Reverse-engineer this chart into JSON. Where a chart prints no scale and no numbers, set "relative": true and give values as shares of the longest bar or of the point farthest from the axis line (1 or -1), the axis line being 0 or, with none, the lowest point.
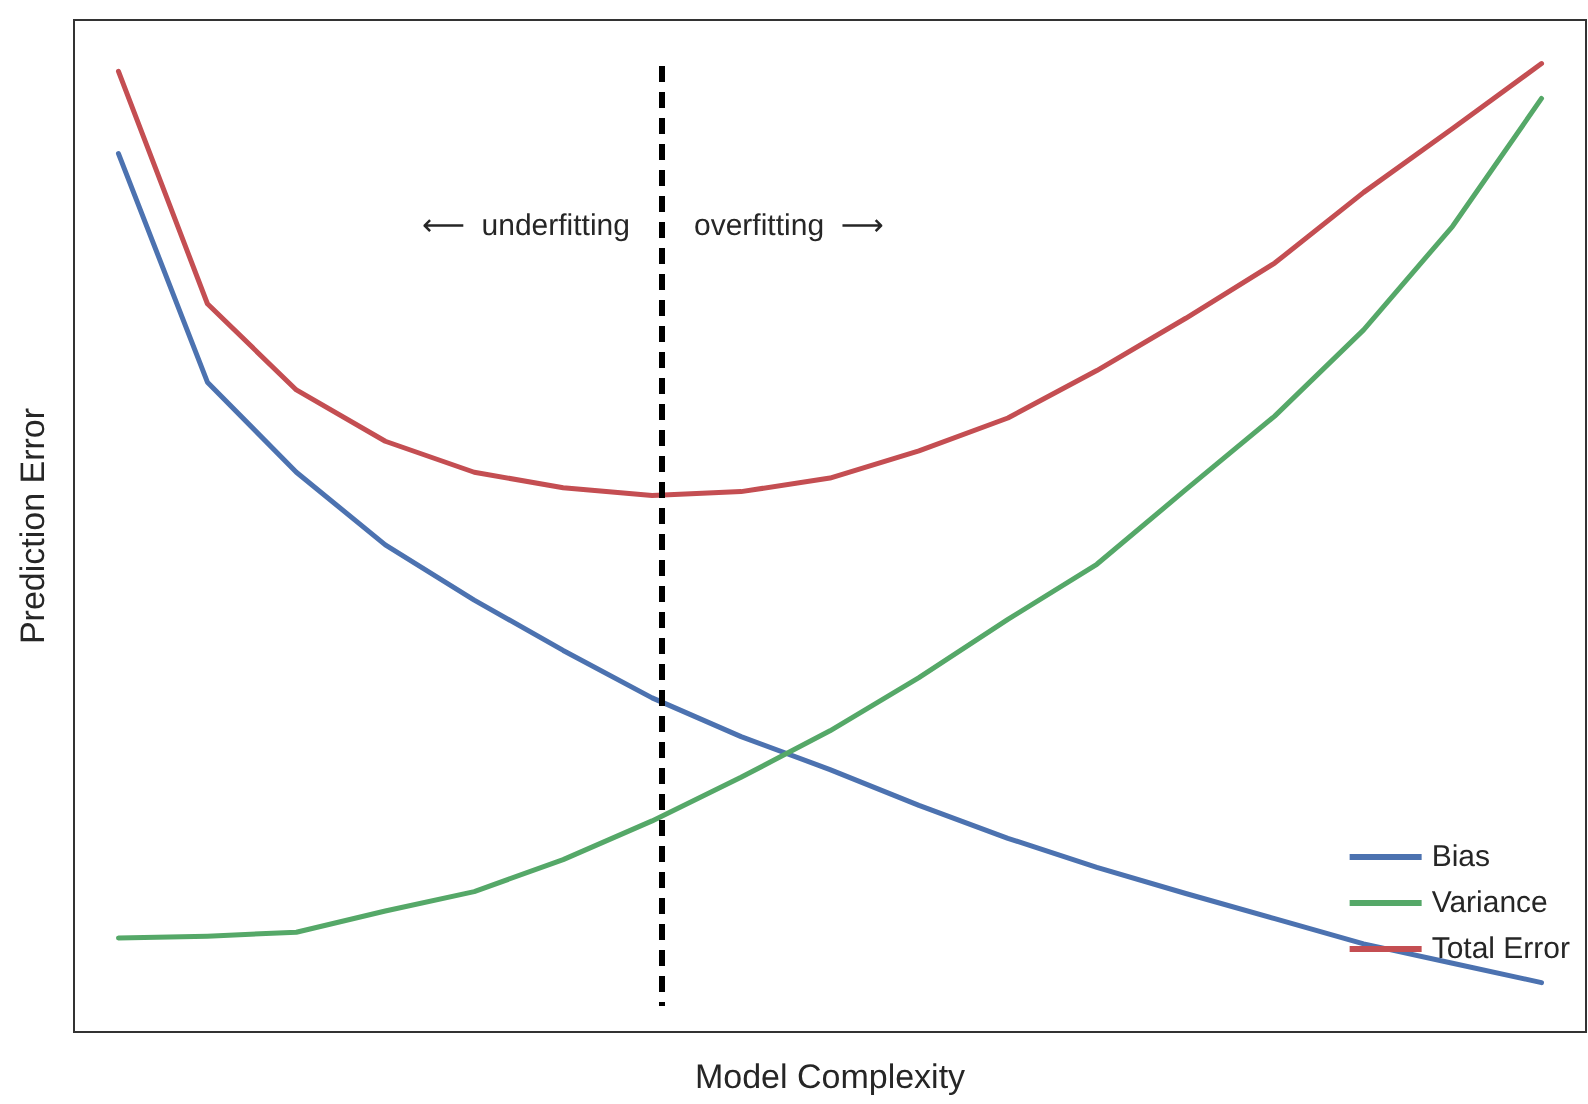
{
  "chart_data": {
    "type": "line",
    "xlabel": "Model Complexity",
    "ylabel": "Prediction Error",
    "relative": true,
    "categories": [
      null,
      null,
      null,
      null,
      null,
      null,
      null,
      null,
      null,
      null,
      null,
      null,
      null,
      null,
      null,
      null,
      null
    ],
    "grid": false,
    "legend": "bottom right",
    "line_style": "solid",
    "marker": "none",
    "series": [
      {
        "name": "Bias",
        "color": "#4c72b0",
        "values": [
          0.907,
          0.671,
          0.578,
          0.503,
          0.446,
          0.394,
          0.345,
          0.305,
          0.271,
          0.234,
          0.2,
          0.17,
          0.143,
          0.117,
          0.091,
          0.071,
          0.051
        ]
      },
      {
        "name": "Variance",
        "color": "#55a868",
        "values": [
          0.097,
          0.099,
          0.103,
          0.125,
          0.145,
          0.178,
          0.218,
          0.263,
          0.311,
          0.366,
          0.426,
          0.483,
          0.56,
          0.636,
          0.725,
          0.832,
          0.964
        ]
      },
      {
        "name": "Total Error",
        "color": "#c44e52",
        "values": [
          0.992,
          0.752,
          0.663,
          0.61,
          0.578,
          0.562,
          0.554,
          0.558,
          0.572,
          0.6,
          0.634,
          0.683,
          0.737,
          0.794,
          0.867,
          0.933,
          1.0
        ]
      }
    ],
    "annotations": [
      "⟵  underfitting",
      "overfitting  ⟶"
    ]
  }
}
